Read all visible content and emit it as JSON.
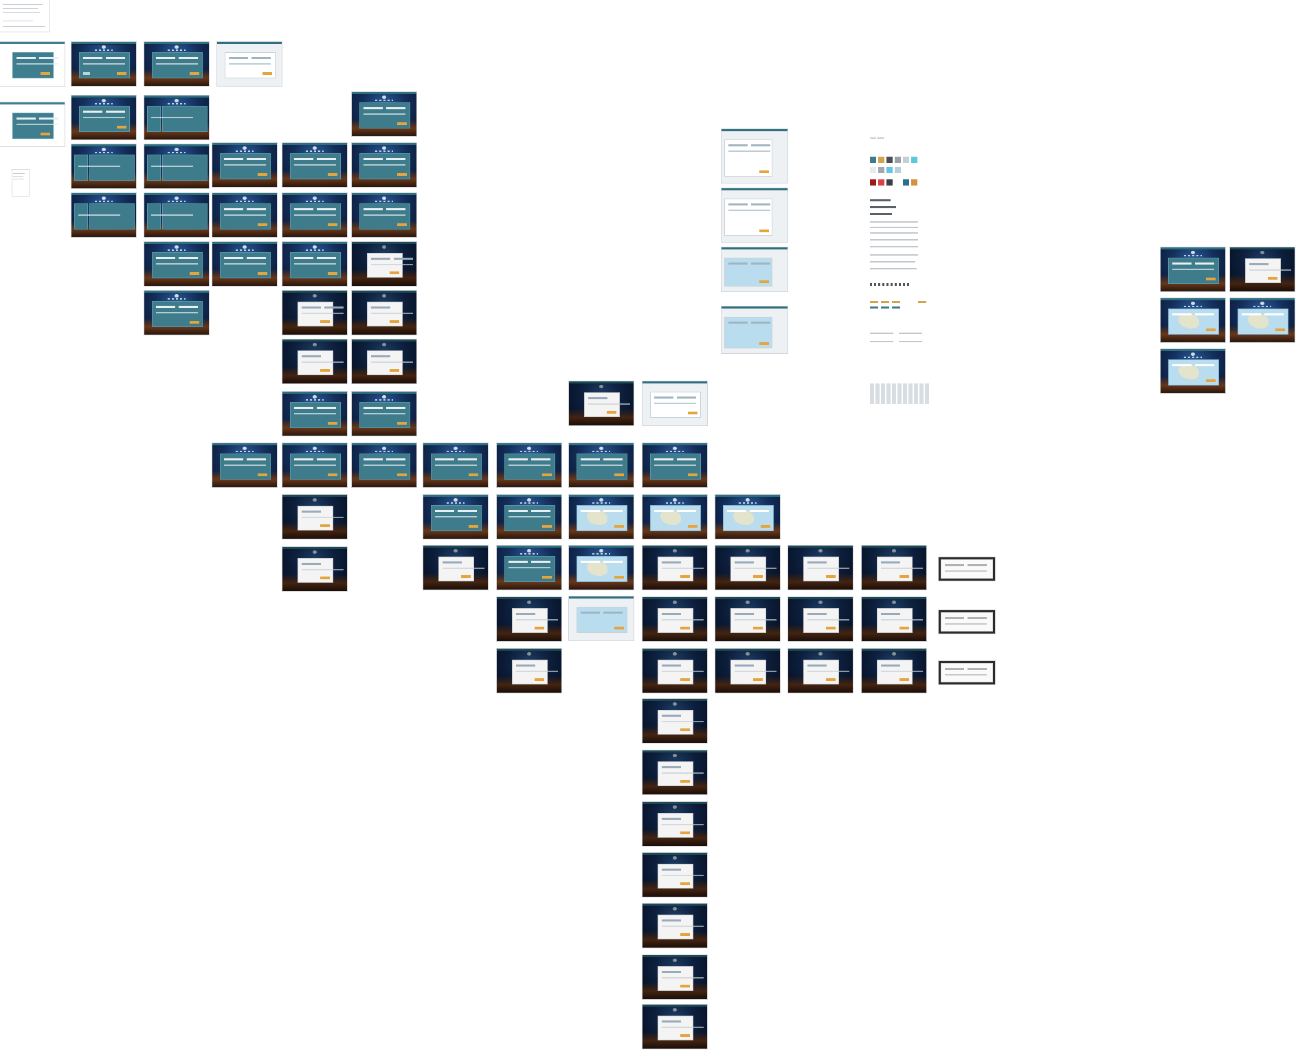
{
  "canvas": {
    "background": "#ffffff",
    "accent_teal": "#3e7c8c",
    "accent_orange": "#e5a53d"
  },
  "style_guide": {
    "title": "Style Guide",
    "swatches": [
      "#3e7c8c",
      "#d4a44a",
      "#4a4f55",
      "#9aa1a8",
      "#c9ced3",
      "#5bc8e0",
      "#e6ebee",
      "#a3a9ae",
      "#67c3e3",
      "#b7d1dc",
      "#9b1b1b",
      "#d94242",
      "#3a3f44",
      "#2a6f8c",
      "#d8913a"
    ]
  }
}
